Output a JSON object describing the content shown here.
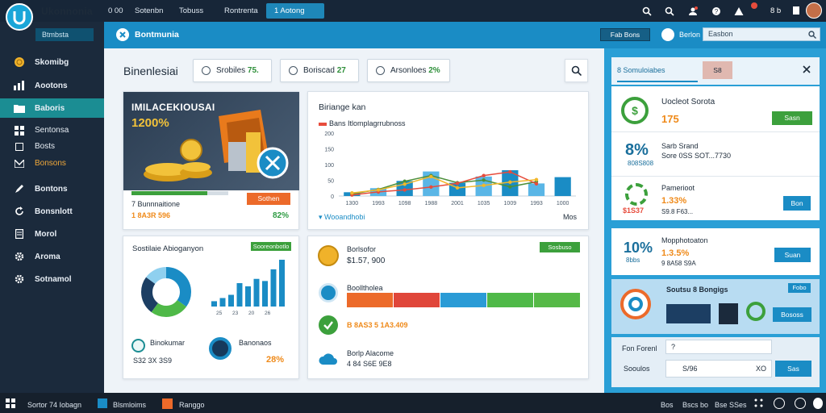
{
  "topbar": {
    "app_name": "Ukonnonia",
    "tabs": [
      {
        "label": "0 00"
      },
      {
        "label": "Sotenbn"
      },
      {
        "label": "Tobuss"
      },
      {
        "label": "Rontrenta"
      },
      {
        "label": "1 Aotong"
      }
    ],
    "right_text": "8 b",
    "icons": [
      "search-icon",
      "search-icon",
      "user-icon",
      "shield-icon",
      "alert-icon",
      "notification-icon"
    ]
  },
  "sidebar": {
    "search_label": "Btmbsta",
    "items": [
      {
        "label": "Skomibg",
        "icon": "coin-icon"
      },
      {
        "label": "Aootons",
        "icon": "chart-icon"
      },
      {
        "label": "Baboris",
        "icon": "folder-icon",
        "active": true
      },
      {
        "label": "Sentonsa",
        "icon": "grid-icon"
      },
      {
        "label": "Bosts",
        "icon": "square-icon"
      },
      {
        "label": "Bonsons",
        "icon": "mail-icon",
        "highlight": true
      },
      {
        "label": "Bontons",
        "icon": "pen-icon"
      },
      {
        "label": "Bonsnlott",
        "icon": "refresh-icon"
      },
      {
        "label": "Morol",
        "icon": "page-icon"
      },
      {
        "label": "Aroma",
        "icon": "gear-icon"
      },
      {
        "label": "Sotnamol",
        "icon": "cog-icon"
      }
    ]
  },
  "header": {
    "title": "Bontmunia",
    "button": "Fab Bons",
    "search_label": "Berlon",
    "search_value": "Easbon"
  },
  "main": {
    "title": "Binenlesiai",
    "pills": [
      {
        "label": "Srobiles",
        "value": "75."
      },
      {
        "label": "Boriscad",
        "value": "27"
      },
      {
        "label": "Arsonloes",
        "value": "2%"
      }
    ],
    "hero_card": {
      "title": "IMILACEKIOUSAI",
      "value": "1200%",
      "caption": "7 Bunnnaitione",
      "subvalue": "1 8A3R 596",
      "button": "Sothen",
      "pct": "82%",
      "progress": 0.78
    },
    "chart_card": {
      "title": "Biriange kan",
      "subtitle": "Bans Itlomplagrrubnoss",
      "footer": "Wooandhobi",
      "footer_right": "Mos"
    },
    "donut_card": {
      "title": "Sostilaie Abioganyon",
      "badge": "Sooreonbotlo",
      "item1_label": "Binokumar",
      "item1_value": "S32 3X 3S9",
      "item2_label": "Banonaos",
      "item2_value": "28%"
    },
    "list_card": {
      "badge": "Sosbuso",
      "rows": [
        {
          "label": "Borlsofor",
          "value": "$1.57, 900",
          "icon": "coin-icon"
        },
        {
          "label": "Boolltholea",
          "value": "",
          "icon": "refresh-icon"
        },
        {
          "label": "",
          "value": "B 8AS3 5 1A3.409",
          "icon": "check-icon"
        },
        {
          "label": "Borlp Alacome",
          "value": "4 84 S6E 9E8",
          "icon": "cloud-icon"
        }
      ],
      "bar_colors": [
        "#ec6a2a",
        "#e0463a",
        "#2a9bd6",
        "#4fb948",
        "#56b947"
      ]
    }
  },
  "chart_data": {
    "type": "bar",
    "title": "Biriange kan",
    "subtitle": "Bans Itlomplagrrubnoss",
    "categories": [
      "1300",
      "1993",
      "1098",
      "1988",
      "2001",
      "1035",
      "1009",
      "1993",
      "1000"
    ],
    "series": [
      {
        "values": [
          12,
          25,
          48,
          78,
          42,
          62,
          82,
          40,
          60
        ]
      }
    ],
    "line_series": [
      {
        "color": "#4c8f3b",
        "values": [
          10,
          32,
          72,
          100,
          65,
          78,
          45,
          70
        ]
      },
      {
        "color": "#e74c3c",
        "values": [
          5,
          20,
          30,
          44,
          62,
          100,
          118,
          60
        ]
      },
      {
        "color": "#f1b72a",
        "values": [
          15,
          30,
          58,
          95,
          40,
          52,
          68,
          80
        ]
      }
    ],
    "yticks": [
      "0",
      "50",
      "100",
      "150",
      "200"
    ],
    "ylim": [
      0,
      200
    ]
  },
  "donut_data": {
    "slices": [
      {
        "color": "#1a8cc5",
        "value": 35
      },
      {
        "color": "#4fb948",
        "value": 25
      },
      {
        "color": "#1c3e63",
        "value": 25
      },
      {
        "color": "#8fd0ef",
        "value": 15
      }
    ],
    "bars": [
      10,
      16,
      22,
      44,
      38,
      52,
      48,
      70,
      88
    ],
    "bar_labels": [
      "25",
      "23",
      "20",
      "26"
    ]
  },
  "right_panel": {
    "tabs": [
      {
        "label": "8 Somuloiabes"
      },
      {
        "label": "S8"
      }
    ],
    "card1": {
      "label": "Uocleot Sorota",
      "value": "175",
      "button": "Sasn"
    },
    "card2": {
      "pct": "8%",
      "label1": "Sarb Srand",
      "value": "Sore 0SS SOT...7730",
      "sub": "808S808"
    },
    "card3": {
      "label": "Pamerioot",
      "value": "1.33%",
      "sub": "S9.8 F63...",
      "left": "$1S37",
      "button": "Bon"
    },
    "card4": {
      "pct": "10%",
      "sub": "8bbs",
      "label": "Mopphotoaton",
      "value": "1.3.5%",
      "sub2": "9 8A58 S9A",
      "button": "Suan"
    },
    "card5": {
      "title": "Soutsu 8 Bongigs",
      "badge": "Fobo",
      "button": "Bososs"
    },
    "form": {
      "label1": "Fon Forenl",
      "value1": "?",
      "label2": "Sooulos",
      "value2": "S/96",
      "suffix": "XO",
      "button": "Sas"
    }
  },
  "taskbar": {
    "items": [
      {
        "label": "Sortor 74 Iobagn"
      },
      {
        "label": "Blsmloims"
      },
      {
        "label": "Ranggo"
      }
    ],
    "right": [
      "Bos",
      "Bscs bo",
      "Bse SSes"
    ]
  },
  "colors": {
    "accent": "#1a8cc5",
    "sidebar": "#1b2a3c",
    "active": "#1b8d93",
    "green": "#3ca03c",
    "orange": "#ef8a1a"
  }
}
